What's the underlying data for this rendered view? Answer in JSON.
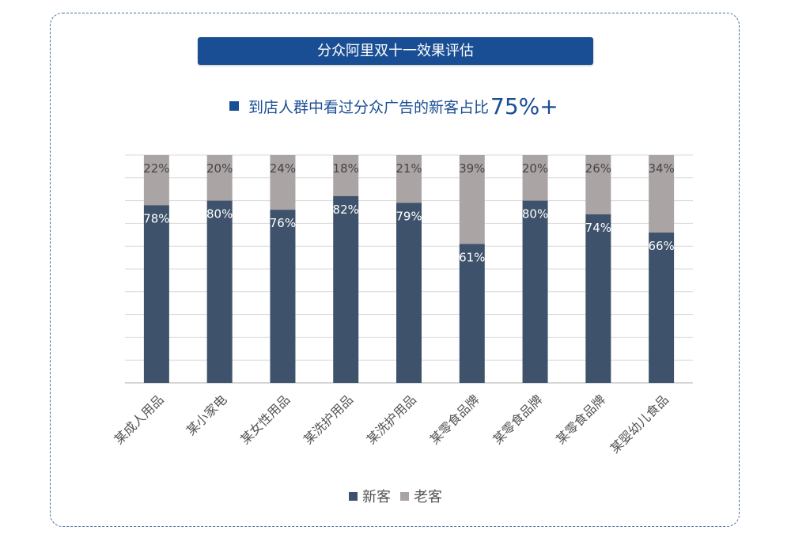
{
  "banner": {
    "title": "分众阿里双十一效果评估"
  },
  "subtitle": {
    "text": "到店人群中看过分众广告的新客占比",
    "emphasis": "75%+"
  },
  "colors": {
    "new": "#3e536b",
    "old": "#aba4a5",
    "accent": "#1a4e94",
    "grid": "#d9d9d9",
    "label_text": "#ffffff",
    "old_label_text": "#444444"
  },
  "chart_data": {
    "type": "bar",
    "stacked": true,
    "percent": true,
    "categories": [
      "某成人用品",
      "某小家电",
      "某女性用品",
      "某洗护用品",
      "某洗护用品",
      "某零食品牌",
      "某零食品牌",
      "某零食品牌",
      "某婴幼儿食品"
    ],
    "series": [
      {
        "name": "新客",
        "values": [
          78,
          80,
          76,
          82,
          79,
          61,
          80,
          74,
          66
        ]
      },
      {
        "name": "老客",
        "values": [
          22,
          20,
          24,
          18,
          21,
          39,
          20,
          26,
          34
        ]
      }
    ],
    "ylim": [
      0,
      100
    ],
    "grid": true,
    "legend_position": "bottom"
  }
}
